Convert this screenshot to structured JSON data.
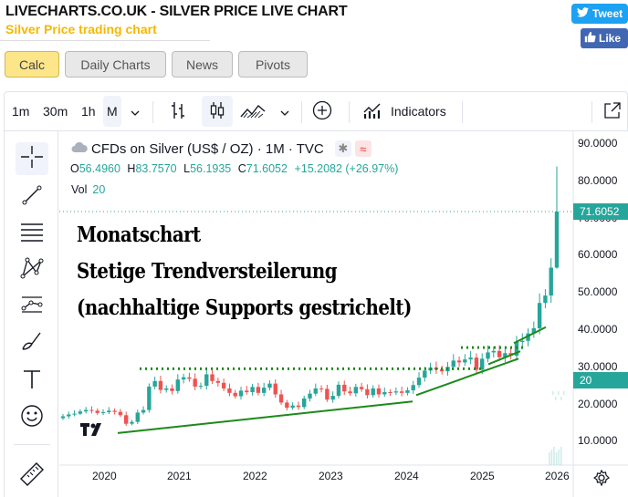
{
  "site": {
    "title": "LIVECHARTS.CO.UK - SILVER PRICE LIVE CHART",
    "subtitle": "Silver Price trading chart",
    "tweet_label": "Tweet",
    "like_label": "Like"
  },
  "nav": [
    {
      "label": "Calc",
      "active": true
    },
    {
      "label": "Daily Charts",
      "active": false
    },
    {
      "label": "News",
      "active": false
    },
    {
      "label": "Pivots",
      "active": false
    }
  ],
  "toolbar": {
    "intervals": [
      "1m",
      "30m",
      "1h",
      "M"
    ],
    "selected_interval": "M",
    "indicators_label": "Indicators"
  },
  "left_tools": [
    "crosshair-icon",
    "trendline-icon",
    "fib-icon",
    "pattern-icon",
    "prediction-icon",
    "brush-icon",
    "text-icon",
    "emoji-icon",
    "ruler-icon"
  ],
  "legend": {
    "symbol": "CFDs on Silver (US$ / OZ) · 1M · TVC",
    "o_label": "O",
    "o_value": "56.4960",
    "h_label": "H",
    "h_value": "83.7570",
    "l_label": "L",
    "l_value": "56.1935",
    "c_label": "C",
    "c_value": "71.6052",
    "change": "+15.2082 (+26.97%)",
    "vol_label": "Vol",
    "vol_value": "20"
  },
  "annotation": {
    "line1": "Monatschart",
    "line2": "Stetige Trendversteilerung",
    "line3": "(nachhaltige Supports gestrichelt)"
  },
  "price_scale": {
    "ticks": [
      "90.0000",
      "80.0000",
      "70.0000",
      "60.0000",
      "50.0000",
      "40.0000",
      "30.0000",
      "20.0000",
      "10.0000"
    ],
    "last_price": "71.6052",
    "vol_badge": "20"
  },
  "time_scale": [
    "2020",
    "2021",
    "2022",
    "2023",
    "2024",
    "2025",
    "2026"
  ],
  "colors": {
    "up": "#26a69a",
    "down": "#ef5350",
    "annotation_line": "#1b8a1b",
    "nav_active": "#fde58a"
  },
  "chart_data": {
    "type": "candlestick",
    "title": "CFDs on Silver (US$ / OZ) · 1M · TVC",
    "ylim": [
      0,
      92
    ],
    "x_range": [
      "2019-07",
      "2026-01"
    ],
    "support_levels": [
      29,
      35
    ],
    "last_candle": {
      "open": 56.496,
      "high": 83.757,
      "low": 56.1935,
      "close": 71.6052
    }
  }
}
